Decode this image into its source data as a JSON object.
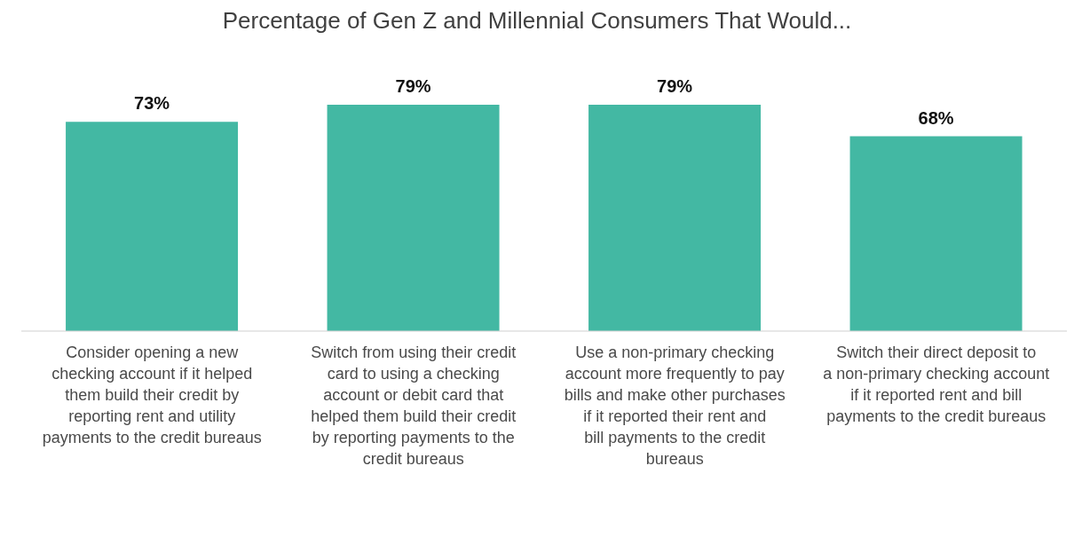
{
  "chart_data": {
    "type": "bar",
    "title": "Percentage of Gen Z and Millennial Consumers That Would...",
    "categories": [
      "Consider opening a new checking account if it helped them build their credit by reporting rent and utility payments to the credit bureaus",
      "Switch from using their credit card to using a checking account or debit card that helped them build their credit by reporting payments to the credit bureaus",
      "Use a non-primary checking account more frequently to pay bills and make other purchases if it reported their rent and bill payments to the credit bureaus",
      "Switch their direct deposit to a non-primary checking account if it reported rent and bill payments to the credit bureaus"
    ],
    "series": [
      {
        "color": "#43b8a3",
        "values": [
          73,
          79,
          79,
          68
        ],
        "value_labels": [
          "73%",
          "79%",
          "79%",
          "68%"
        ]
      }
    ],
    "grid": false,
    "legend": false
  }
}
